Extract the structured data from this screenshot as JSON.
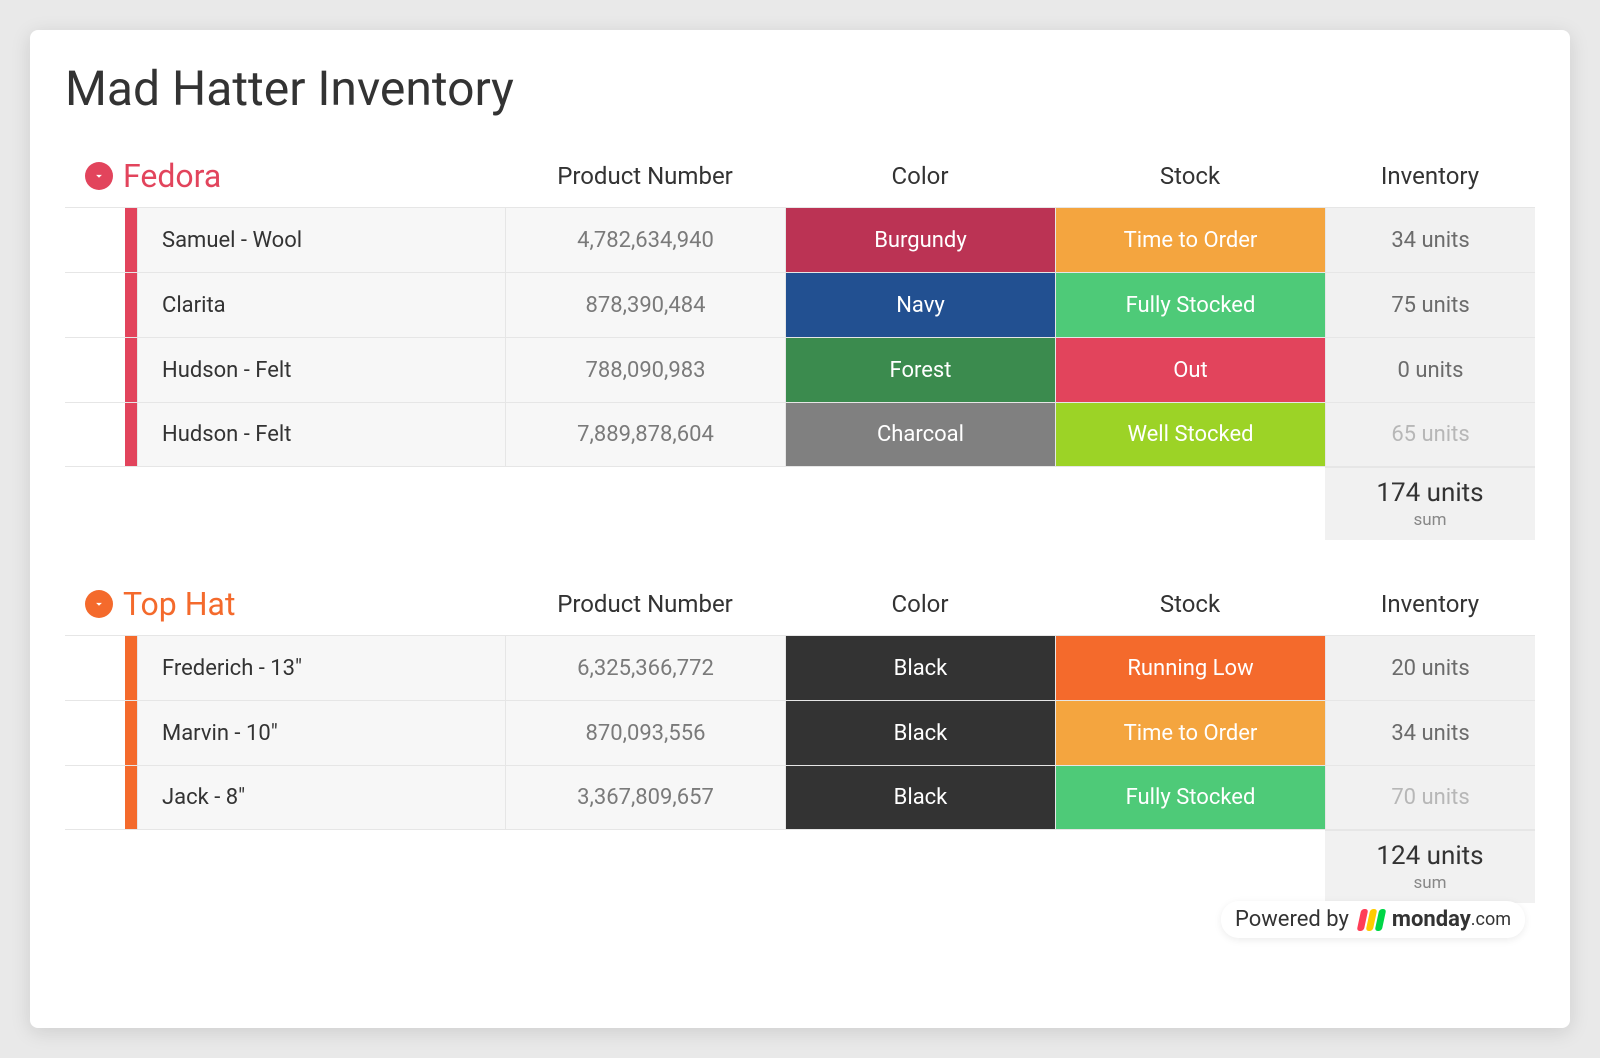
{
  "page": {
    "title": "Mad Hatter Inventory",
    "background": "#e9e9e9",
    "board_background": "#ffffff"
  },
  "columns": {
    "product": "Product Number",
    "color": "Color",
    "stock": "Stock",
    "inventory": "Inventory"
  },
  "column_widths": {
    "product": 280,
    "color": 270,
    "stock": 270,
    "inventory": 210
  },
  "groups": [
    {
      "id": "fedora",
      "name": "Fedora",
      "accent": "#e2445c",
      "rows": [
        {
          "name": "Samuel - Wool",
          "product_number": "4,782,634,940",
          "color": {
            "label": "Burgundy",
            "bg": "#bb3354"
          },
          "stock": {
            "label": "Time to Order",
            "bg": "#f4a53f"
          },
          "inventory": "34 units",
          "inventory_faded": false
        },
        {
          "name": "Clarita",
          "product_number": "878,390,484",
          "color": {
            "label": "Navy",
            "bg": "#225091"
          },
          "stock": {
            "label": "Fully Stocked",
            "bg": "#4eca78"
          },
          "inventory": "75 units",
          "inventory_faded": false
        },
        {
          "name": "Hudson - Felt",
          "product_number": "788,090,983",
          "color": {
            "label": "Forest",
            "bg": "#3b8b4e"
          },
          "stock": {
            "label": "Out",
            "bg": "#e2445c"
          },
          "inventory": "0 units",
          "inventory_faded": false
        },
        {
          "name": "Hudson - Felt",
          "product_number": "7,889,878,604",
          "color": {
            "label": "Charcoal",
            "bg": "#808080"
          },
          "stock": {
            "label": "Well Stocked",
            "bg": "#9cd326"
          },
          "inventory": "65 units",
          "inventory_faded": true
        }
      ],
      "sum": {
        "value": "174 units",
        "label": "sum"
      }
    },
    {
      "id": "tophat",
      "name": "Top Hat",
      "accent": "#f46a2c",
      "rows": [
        {
          "name": "Frederich - 13\"",
          "product_number": "6,325,366,772",
          "color": {
            "label": "Black",
            "bg": "#333333"
          },
          "stock": {
            "label": "Running Low",
            "bg": "#f46a2c"
          },
          "inventory": "20 units",
          "inventory_faded": false
        },
        {
          "name": "Marvin - 10\"",
          "product_number": "870,093,556",
          "color": {
            "label": "Black",
            "bg": "#333333"
          },
          "stock": {
            "label": "Time to Order",
            "bg": "#f4a53f"
          },
          "inventory": "34 units",
          "inventory_faded": false
        },
        {
          "name": "Jack - 8\"",
          "product_number": "3,367,809,657",
          "color": {
            "label": "Black",
            "bg": "#333333"
          },
          "stock": {
            "label": "Fully Stocked",
            "bg": "#4eca78"
          },
          "inventory": "70 units",
          "inventory_faded": true
        }
      ],
      "sum": {
        "value": "124 units",
        "label": "sum"
      }
    }
  ],
  "powered_by": {
    "prefix": "Powered by",
    "brand": "monday",
    "suffix": ".com",
    "logo_colors": [
      "#ff3d57",
      "#ffcb00",
      "#00d647"
    ]
  }
}
